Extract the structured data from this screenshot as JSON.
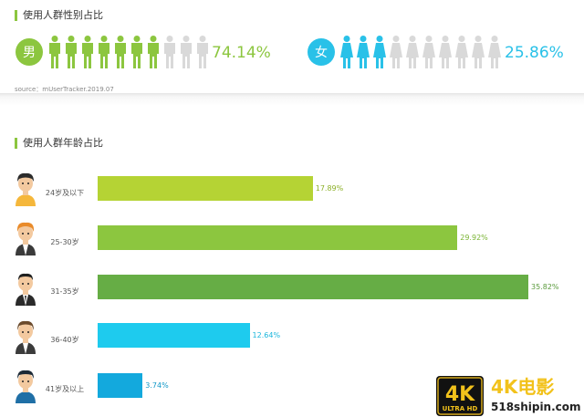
{
  "gender_section": {
    "title": "使用人群性别占比",
    "male": {
      "label": "男",
      "percent": "74.14%",
      "value": 74.14,
      "icon": "male-person-icon",
      "color": "#8cc63f"
    },
    "female": {
      "label": "女",
      "percent": "25.86%",
      "value": 25.86,
      "icon": "female-person-icon",
      "color": "#29c1e8"
    },
    "inactive_color": "#d9d9d9",
    "source": "source：mUserTracker.2019.07"
  },
  "age_section": {
    "title": "使用人群年龄占比"
  },
  "chart_data": {
    "type": "bar",
    "orientation": "horizontal",
    "title": "使用人群年龄占比",
    "categories": [
      "24岁及以下",
      "25-30岁",
      "31-35岁",
      "36-40岁",
      "41岁及以上"
    ],
    "values": [
      17.89,
      29.92,
      35.82,
      12.64,
      3.74
    ],
    "labels": [
      "17.89%",
      "29.92%",
      "35.82%",
      "12.64%",
      "3.74%"
    ],
    "colors": [
      "#b5d334",
      "#8cc63f",
      "#66ad45",
      "#1ecbee",
      "#13a9dd"
    ],
    "label_colors": [
      "#8cb028",
      "#7ab434",
      "#5a9a3c",
      "#1ab6dc",
      "#1198c8"
    ]
  },
  "watermark": {
    "badge_main": "4K",
    "badge_sub": "ULTRA HD",
    "text": "4K电影",
    "url": "518shipin.com"
  }
}
